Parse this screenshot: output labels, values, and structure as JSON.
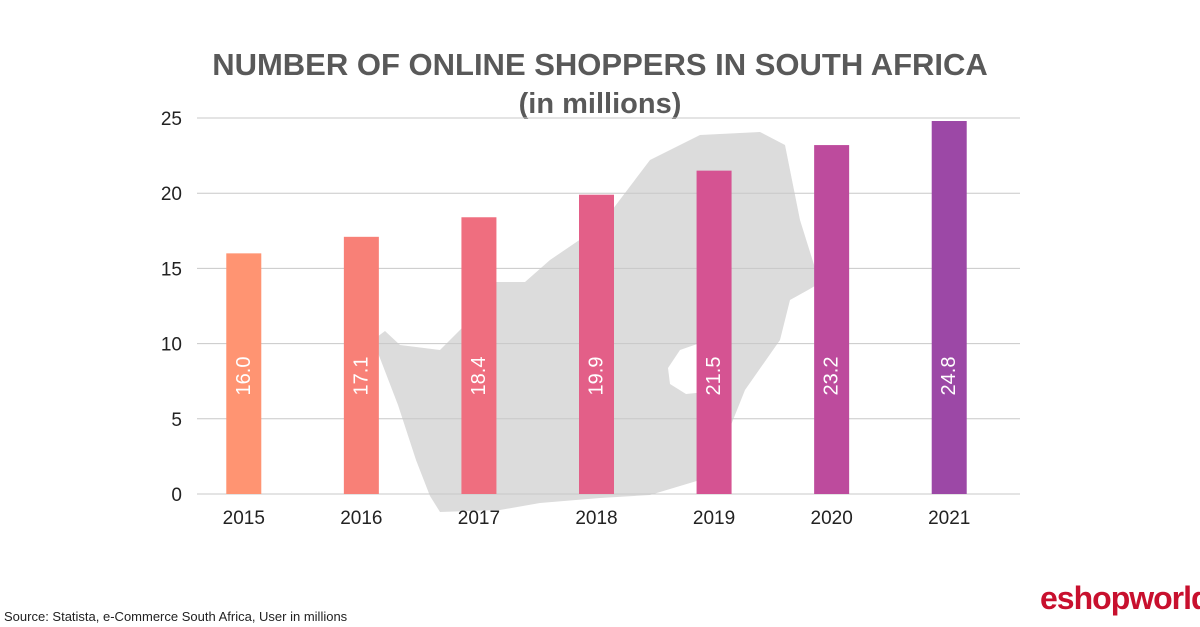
{
  "chart_data": {
    "type": "bar",
    "title": "NUMBER OF ONLINE SHOPPERS IN SOUTH AFRICA",
    "subtitle": "(in millions)",
    "xlabel": "",
    "ylabel": "",
    "categories": [
      "2015",
      "2016",
      "2017",
      "2018",
      "2019",
      "2020",
      "2021"
    ],
    "values": [
      16.0,
      17.1,
      18.4,
      19.9,
      21.5,
      23.2,
      24.8
    ],
    "data_labels": [
      "16.0",
      "17.1",
      "18.4",
      "19.9",
      "21.5",
      "23.2",
      "24.8"
    ],
    "bar_colors": [
      "#ff9472",
      "#f88077",
      "#ef6e7f",
      "#e35f88",
      "#d55392",
      "#bd4b9d",
      "#9c48a6"
    ],
    "ylim": [
      0,
      25
    ],
    "yticks": [
      0,
      5,
      10,
      15,
      20,
      25
    ],
    "ytick_labels": [
      "0",
      "5",
      "10",
      "15",
      "20",
      "25"
    ],
    "grid": true,
    "legend": "none",
    "background_shape": "map of South Africa (light grey silhouette)"
  },
  "footer": {
    "source": "Source: Statista, e-Commerce South Africa, User in millions",
    "logo_text": "eshopworld",
    "logo_color": "#c8102e"
  }
}
